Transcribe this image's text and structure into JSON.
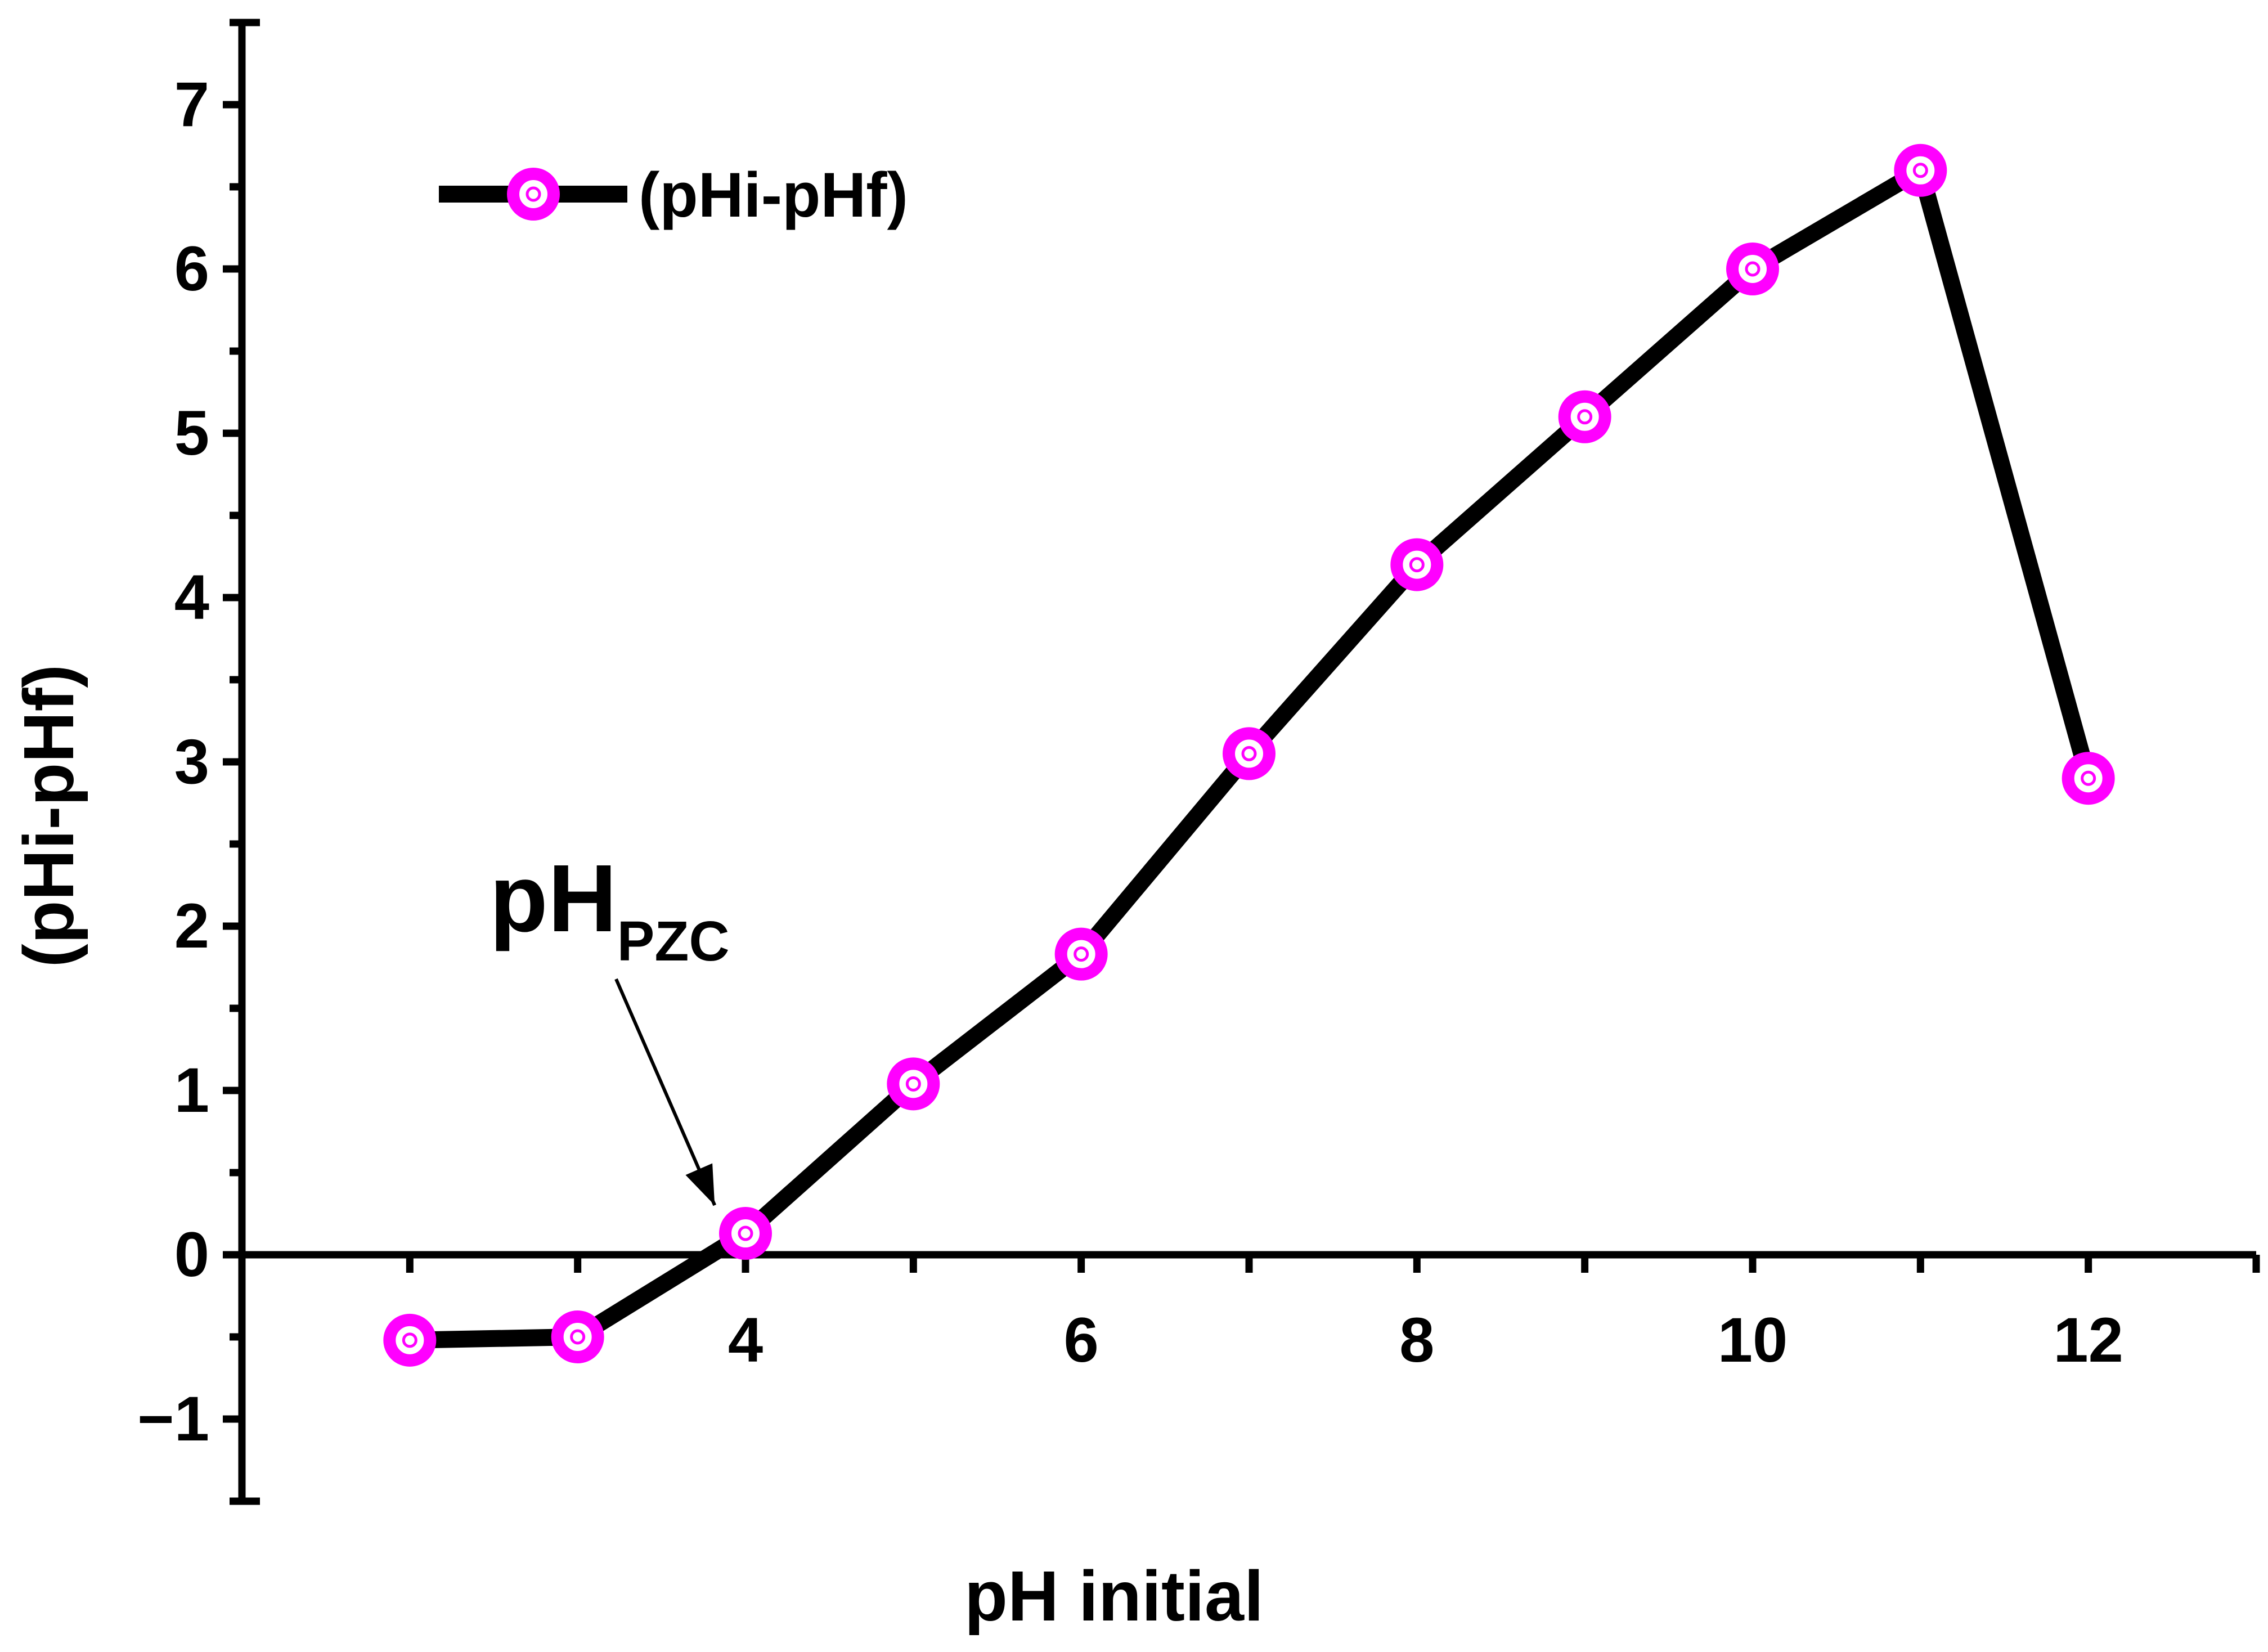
{
  "chart_data": {
    "type": "line",
    "title": "",
    "xlabel": "pH initial",
    "ylabel": "(pHi-pHf)",
    "xlim": [
      1,
      13
    ],
    "ylim": [
      -1.5,
      7.5
    ],
    "x_ticks": [
      4,
      6,
      8,
      10,
      12
    ],
    "x_tick_labels": [
      "4",
      "6",
      "8",
      "10",
      "12"
    ],
    "y_ticks": [
      -1,
      0,
      1,
      2,
      3,
      4,
      5,
      6,
      7
    ],
    "y_tick_labels": [
      "−1",
      "0",
      "1",
      "2",
      "3",
      "4",
      "5",
      "6",
      "7"
    ],
    "x_axis_at_y": 0,
    "grid": false,
    "legend_position": "top-left",
    "series": [
      {
        "name": "(pHi-pHf)",
        "color": "#000000",
        "marker_color": "#ff00ff",
        "x": [
          2,
          3,
          4,
          5,
          6,
          7,
          8,
          9,
          10,
          11,
          12
        ],
        "y": [
          -0.52,
          -0.5,
          0.13,
          1.04,
          1.83,
          3.05,
          4.2,
          5.1,
          6.0,
          6.6,
          2.9
        ]
      }
    ],
    "annotations": [
      {
        "text": "pH",
        "subscript": "PZC",
        "points_to": {
          "x": 3.85,
          "y": 0.0
        }
      }
    ]
  }
}
